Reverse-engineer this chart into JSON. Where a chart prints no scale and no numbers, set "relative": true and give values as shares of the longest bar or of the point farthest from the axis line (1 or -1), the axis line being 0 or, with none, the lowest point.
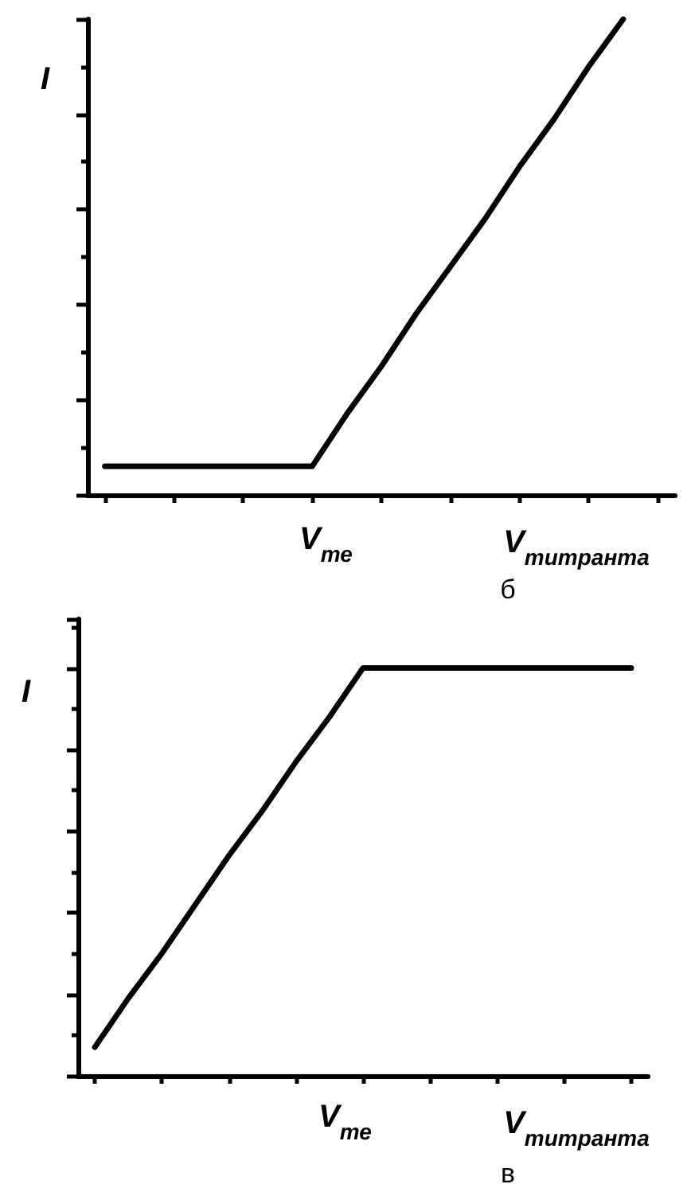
{
  "chart_data": [
    {
      "type": "line",
      "title": "б",
      "xlabel": "V$_{титранта}$",
      "ylabel": "I",
      "relative": true,
      "annotations": [
        "V$_{те}$"
      ],
      "categories": [
        null,
        null,
        null,
        null,
        null,
        null,
        null,
        null,
        null,
        null,
        null,
        null,
        null,
        null,
        null,
        null,
        null
      ],
      "series": [
        {
          "color": "#000000",
          "values": [
            0.06,
            0.06,
            0.06,
            0.06,
            0.06,
            0.06,
            0.06,
            0.17,
            0.27,
            0.38,
            0.48,
            0.58,
            0.69,
            0.79,
            0.9,
            1,
            null
          ]
        }
      ]
    },
    {
      "type": "line",
      "title": "в",
      "xlabel": "V$_{титранта}$",
      "ylabel": "I",
      "relative": true,
      "annotations": [
        "V$_{те}$"
      ],
      "categories": [
        null,
        null,
        null,
        null,
        null,
        null,
        null,
        null,
        null,
        null,
        null,
        null,
        null,
        null,
        null,
        null,
        null
      ],
      "series": [
        {
          "color": "#000000",
          "values": [
            0.07,
            0.19,
            0.3,
            0.42,
            0.54,
            0.65,
            0.77,
            0.88,
            1,
            1,
            1,
            1,
            1,
            1,
            1,
            1,
            1
          ]
        }
      ]
    }
  ]
}
